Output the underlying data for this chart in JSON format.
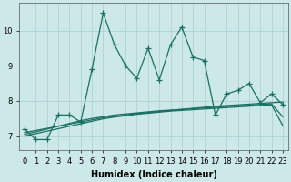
{
  "xlabel": "Humidex (Indice chaleur)",
  "background_color": "#cce8e8",
  "grid_color": "#aacece",
  "line_color": "#1a7060",
  "x_values": [
    0,
    1,
    2,
    3,
    4,
    5,
    6,
    7,
    8,
    9,
    10,
    11,
    12,
    13,
    14,
    15,
    16,
    17,
    18,
    19,
    20,
    21,
    22,
    23
  ],
  "y_main": [
    7.2,
    6.9,
    6.9,
    7.6,
    7.6,
    7.4,
    8.9,
    10.5,
    9.6,
    9.0,
    8.65,
    9.5,
    8.6,
    9.6,
    10.1,
    9.25,
    9.15,
    7.6,
    8.2,
    8.3,
    8.5,
    7.95,
    8.2,
    7.9
  ],
  "y_trend1": [
    7.1,
    7.16,
    7.22,
    7.28,
    7.34,
    7.4,
    7.46,
    7.52,
    7.56,
    7.6,
    7.64,
    7.67,
    7.7,
    7.73,
    7.76,
    7.79,
    7.82,
    7.85,
    7.87,
    7.89,
    7.91,
    7.93,
    7.95,
    7.97
  ],
  "y_trend2": [
    7.05,
    7.12,
    7.2,
    7.28,
    7.36,
    7.44,
    7.5,
    7.55,
    7.6,
    7.63,
    7.66,
    7.69,
    7.72,
    7.74,
    7.76,
    7.78,
    7.8,
    7.82,
    7.84,
    7.86,
    7.88,
    7.9,
    7.92,
    7.55
  ],
  "y_trend3": [
    7.0,
    7.07,
    7.14,
    7.21,
    7.28,
    7.35,
    7.42,
    7.49,
    7.54,
    7.58,
    7.62,
    7.65,
    7.68,
    7.71,
    7.73,
    7.75,
    7.77,
    7.79,
    7.81,
    7.83,
    7.85,
    7.87,
    7.89,
    7.3
  ],
  "ylim": [
    6.6,
    10.8
  ],
  "yticks": [
    7,
    8,
    9,
    10
  ],
  "xticks": [
    0,
    1,
    2,
    3,
    4,
    5,
    6,
    7,
    8,
    9,
    10,
    11,
    12,
    13,
    14,
    15,
    16,
    17,
    18,
    19,
    20,
    21,
    22,
    23
  ],
  "marker": "+",
  "markersize": 4,
  "linewidth": 0.9,
  "fontsize_label": 7,
  "fontsize_tick": 6
}
